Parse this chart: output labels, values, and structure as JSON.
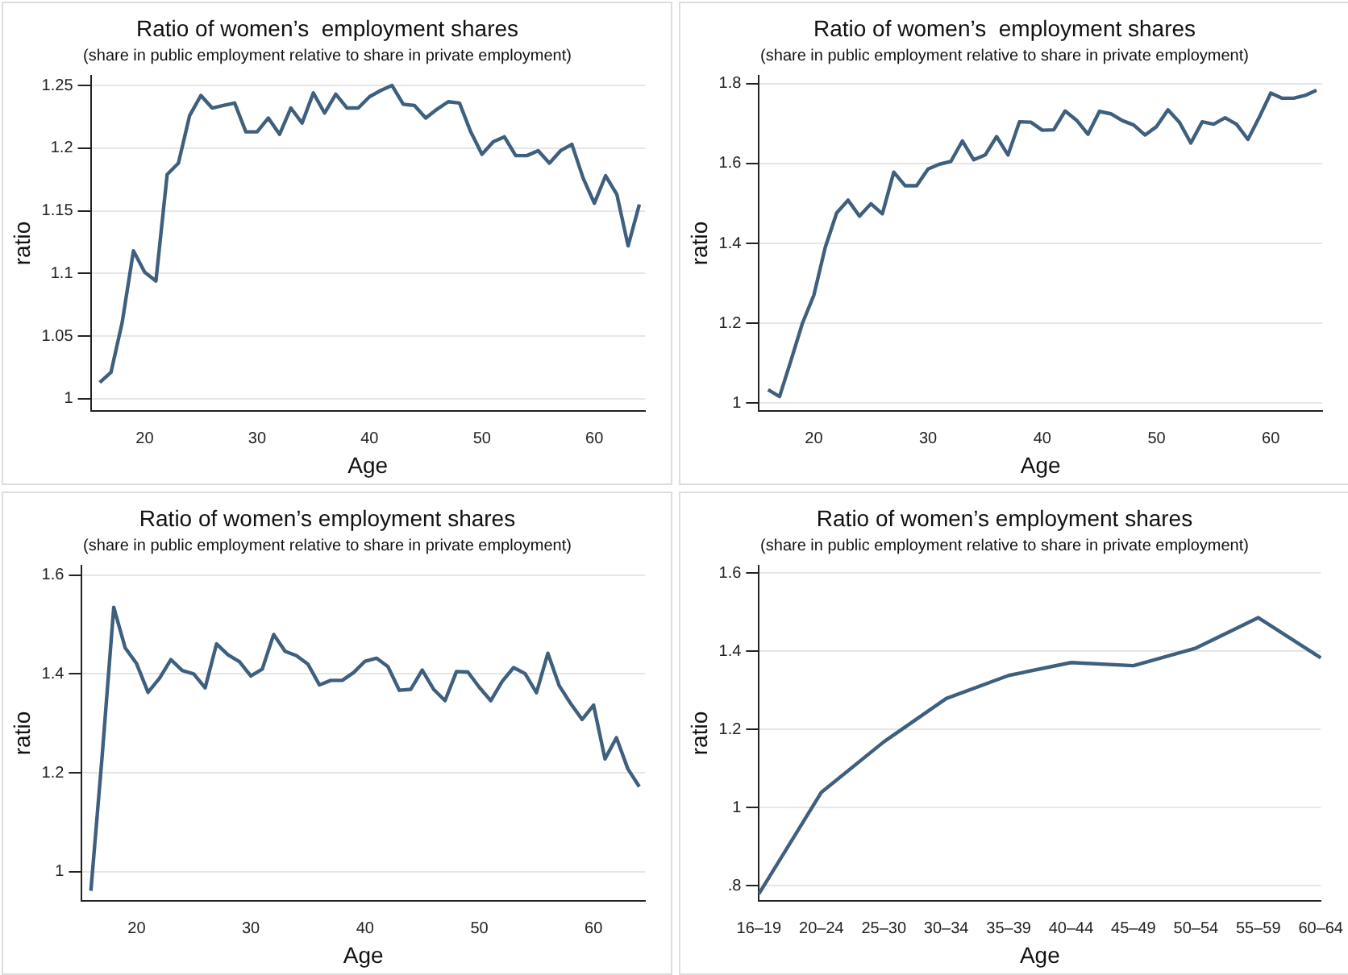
{
  "chart_data": [
    {
      "type": "line",
      "title": "Ratio of women’s  employment shares",
      "subtitle": "(share in public employment relative to share in private employment)",
      "xlabel": "Age",
      "ylabel": "ratio",
      "marker": "none",
      "grid": "y",
      "x": [
        16,
        17,
        18,
        19,
        20,
        21,
        22,
        23,
        24,
        25,
        26,
        27,
        28,
        29,
        30,
        31,
        32,
        33,
        34,
        35,
        36,
        37,
        38,
        39,
        40,
        41,
        42,
        43,
        44,
        45,
        46,
        47,
        48,
        49,
        50,
        51,
        52,
        53,
        54,
        55,
        56,
        57,
        58,
        59,
        60,
        61,
        62,
        63,
        64
      ],
      "series": [
        {
          "color": "#3e5f7d",
          "values": [
            1.013,
            1.021,
            1.061,
            1.118,
            1.101,
            1.094,
            1.179,
            1.188,
            1.226,
            1.242,
            1.232,
            1.234,
            1.236,
            1.213,
            1.213,
            1.224,
            1.211,
            1.232,
            1.22,
            1.244,
            1.228,
            1.243,
            1.232,
            1.232,
            1.241,
            1.246,
            1.25,
            1.235,
            1.234,
            1.224,
            1.231,
            1.237,
            1.236,
            1.213,
            1.195,
            1.205,
            1.209,
            1.194,
            1.194,
            1.198,
            1.188,
            1.198,
            1.203,
            1.176,
            1.156,
            1.178,
            1.163,
            1.122,
            1.155
          ]
        }
      ],
      "xlim": [
        15.2,
        64.5
      ],
      "xticks": [
        20,
        30,
        40,
        50,
        60
      ],
      "ylim": [
        0.99,
        1.258
      ],
      "yticks": [
        1,
        1.05,
        1.1,
        1.15,
        1.2,
        1.25
      ]
    },
    {
      "type": "line",
      "title": "Ratio of women’s  employment shares",
      "subtitle": "(share in public employment relative to share in private employment)",
      "xlabel": "Age",
      "ylabel": "ratio",
      "marker": "none",
      "grid": "y",
      "x": [
        16,
        17,
        18,
        19,
        20,
        21,
        22,
        23,
        24,
        25,
        26,
        27,
        28,
        29,
        30,
        31,
        32,
        33,
        34,
        35,
        36,
        37,
        38,
        39,
        40,
        41,
        42,
        43,
        44,
        45,
        46,
        47,
        48,
        49,
        50,
        51,
        52,
        53,
        54,
        55,
        56,
        57,
        58,
        59,
        60,
        61,
        62,
        63,
        64
      ],
      "series": [
        {
          "color": "#3e5f7d",
          "values": [
            1.034,
            1.017,
            1.107,
            1.2,
            1.27,
            1.39,
            1.476,
            1.508,
            1.468,
            1.499,
            1.474,
            1.578,
            1.544,
            1.544,
            1.586,
            1.598,
            1.605,
            1.656,
            1.609,
            1.621,
            1.667,
            1.621,
            1.704,
            1.703,
            1.683,
            1.684,
            1.731,
            1.708,
            1.673,
            1.73,
            1.724,
            1.707,
            1.696,
            1.671,
            1.692,
            1.734,
            1.703,
            1.651,
            1.704,
            1.698,
            1.714,
            1.698,
            1.66,
            1.716,
            1.776,
            1.763,
            1.763,
            1.77,
            1.783
          ]
        }
      ],
      "xlim": [
        15.2,
        64.5
      ],
      "xticks": [
        20,
        30,
        40,
        50,
        60
      ],
      "ylim": [
        0.98,
        1.82
      ],
      "yticks": [
        1,
        1.2,
        1.4,
        1.6,
        1.8
      ]
    },
    {
      "type": "line",
      "title": "Ratio of women’s employment shares",
      "subtitle": "(share in public employment relative to share in private employment)",
      "xlabel": "Age",
      "ylabel": "ratio",
      "marker": "none",
      "grid": "y",
      "x": [
        16,
        17,
        18,
        19,
        20,
        21,
        22,
        23,
        24,
        25,
        26,
        27,
        28,
        29,
        30,
        31,
        32,
        33,
        34,
        35,
        36,
        37,
        38,
        39,
        40,
        41,
        42,
        43,
        44,
        45,
        46,
        47,
        48,
        49,
        50,
        51,
        52,
        53,
        54,
        55,
        56,
        57,
        58,
        59,
        60,
        61,
        62,
        63,
        64
      ],
      "series": [
        {
          "color": "#3e5f7d",
          "values": [
            0.961,
            1.238,
            1.535,
            1.453,
            1.421,
            1.363,
            1.391,
            1.429,
            1.407,
            1.4,
            1.372,
            1.461,
            1.439,
            1.425,
            1.396,
            1.41,
            1.48,
            1.446,
            1.437,
            1.42,
            1.378,
            1.387,
            1.387,
            1.403,
            1.426,
            1.432,
            1.415,
            1.367,
            1.369,
            1.408,
            1.369,
            1.346,
            1.405,
            1.404,
            1.373,
            1.346,
            1.385,
            1.413,
            1.401,
            1.362,
            1.442,
            1.376,
            1.34,
            1.308,
            1.337,
            1.228,
            1.271,
            1.208,
            1.172
          ]
        }
      ],
      "xlim": [
        15.2,
        64.5
      ],
      "xticks": [
        20,
        30,
        40,
        50,
        60
      ],
      "ylim": [
        0.94,
        1.62
      ],
      "yticks": [
        1,
        1.2,
        1.4,
        1.6
      ]
    },
    {
      "type": "line",
      "title": "Ratio of women’s employment shares",
      "subtitle": "(share in public employment relative to share in private employment)",
      "xlabel": "Age",
      "ylabel": "ratio",
      "marker": "none",
      "grid": "y",
      "categories": [
        "16–19",
        "20–24",
        "25–30",
        "30–34",
        "35–39",
        "40–44",
        "45–49",
        "50–54",
        "55–59",
        "60–64"
      ],
      "series": [
        {
          "color": "#3e5f7d",
          "values": [
            0.779,
            1.039,
            1.168,
            1.279,
            1.338,
            1.371,
            1.363,
            1.408,
            1.486,
            1.383
          ]
        }
      ],
      "ylim": [
        0.76,
        1.62
      ],
      "yticks": [
        {
          "value": 0.8,
          "label": ".8"
        },
        1,
        1.2,
        1.4,
        1.6
      ]
    }
  ]
}
